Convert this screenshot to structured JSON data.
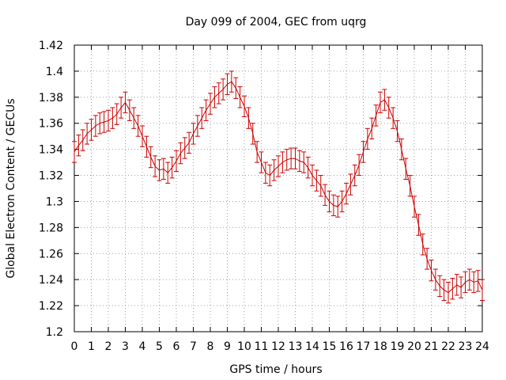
{
  "chart_data": {
    "type": "line",
    "title": "Day 099 of 2004, GEC from uqrg",
    "xlabel": "GPS time / hours",
    "ylabel": "Global Electron Content / GECUs",
    "xlim": [
      0,
      24
    ],
    "ylim": [
      1.2,
      1.42
    ],
    "x_ticks": [
      0,
      1,
      2,
      3,
      4,
      5,
      6,
      7,
      8,
      9,
      10,
      11,
      12,
      13,
      14,
      15,
      16,
      17,
      18,
      19,
      20,
      21,
      22,
      23,
      24
    ],
    "y_ticks": [
      1.2,
      1.22,
      1.24,
      1.26,
      1.28,
      1.3,
      1.32,
      1.34,
      1.36,
      1.38,
      1.4,
      1.42
    ],
    "y_tick_labels": [
      "1.2",
      "1.22",
      "1.24",
      "1.26",
      "1.28",
      "1.3",
      "1.32",
      "1.34",
      "1.36",
      "1.38",
      "1.4",
      "1.42"
    ],
    "grid": true,
    "series_color": "#cc0000",
    "error_half_width": 0.008,
    "x": [
      0,
      0.25,
      0.5,
      0.75,
      1,
      1.25,
      1.5,
      1.75,
      2,
      2.25,
      2.5,
      2.75,
      3,
      3.25,
      3.5,
      3.75,
      4,
      4.25,
      4.5,
      4.75,
      5,
      5.25,
      5.5,
      5.75,
      6,
      6.25,
      6.5,
      6.75,
      7,
      7.25,
      7.5,
      7.75,
      8,
      8.25,
      8.5,
      8.75,
      9,
      9.25,
      9.5,
      9.75,
      10,
      10.25,
      10.5,
      10.75,
      11,
      11.25,
      11.5,
      11.75,
      12,
      12.25,
      12.5,
      12.75,
      13,
      13.25,
      13.5,
      13.75,
      14,
      14.25,
      14.5,
      14.75,
      15,
      15.25,
      15.5,
      15.75,
      16,
      16.25,
      16.5,
      16.75,
      17,
      17.25,
      17.5,
      17.75,
      18,
      18.25,
      18.5,
      18.75,
      19,
      19.25,
      19.5,
      19.75,
      20,
      20.25,
      20.5,
      20.75,
      21,
      21.25,
      21.5,
      21.75,
      22,
      22.25,
      22.5,
      22.75,
      23,
      23.25,
      23.5,
      23.75,
      24
    ],
    "y": [
      1.338,
      1.343,
      1.347,
      1.352,
      1.355,
      1.358,
      1.36,
      1.361,
      1.362,
      1.364,
      1.367,
      1.372,
      1.376,
      1.37,
      1.364,
      1.358,
      1.35,
      1.342,
      1.334,
      1.327,
      1.324,
      1.325,
      1.322,
      1.326,
      1.331,
      1.337,
      1.341,
      1.345,
      1.352,
      1.358,
      1.364,
      1.37,
      1.375,
      1.38,
      1.383,
      1.386,
      1.39,
      1.392,
      1.387,
      1.38,
      1.373,
      1.364,
      1.352,
      1.338,
      1.33,
      1.322,
      1.32,
      1.324,
      1.327,
      1.33,
      1.332,
      1.333,
      1.333,
      1.331,
      1.33,
      1.326,
      1.32,
      1.316,
      1.312,
      1.305,
      1.3,
      1.297,
      1.296,
      1.3,
      1.306,
      1.313,
      1.32,
      1.328,
      1.338,
      1.348,
      1.356,
      1.366,
      1.376,
      1.378,
      1.372,
      1.364,
      1.354,
      1.34,
      1.325,
      1.312,
      1.296,
      1.282,
      1.267,
      1.256,
      1.247,
      1.24,
      1.235,
      1.232,
      1.23,
      1.233,
      1.236,
      1.234,
      1.238,
      1.24,
      1.238,
      1.239,
      1.232
    ]
  }
}
